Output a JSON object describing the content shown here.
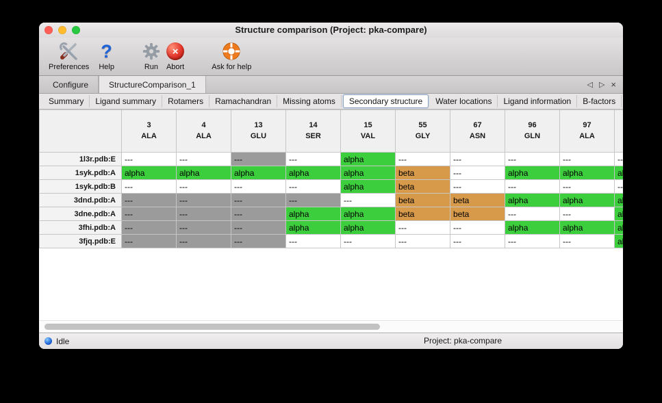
{
  "window": {
    "title": "Structure comparison (Project: pka-compare)"
  },
  "toolbar": {
    "items": [
      {
        "id": "preferences",
        "label": "Preferences",
        "icon": "tools"
      },
      {
        "id": "help",
        "label": "Help",
        "icon": "question"
      },
      {
        "id": "run",
        "label": "Run",
        "icon": "gear"
      },
      {
        "id": "abort",
        "label": "Abort",
        "icon": "abort"
      },
      {
        "id": "ask-for-help",
        "label": "Ask for help",
        "icon": "lifebuoy"
      }
    ]
  },
  "doc_tabs": {
    "tabs": [
      {
        "label": "Configure",
        "selected": false
      },
      {
        "label": "StructureComparison_1",
        "selected": true
      }
    ],
    "controls": {
      "prev": "◁",
      "next": "▷",
      "close": "×"
    }
  },
  "view_tabs": {
    "tabs": [
      {
        "label": "Summary",
        "selected": false
      },
      {
        "label": "Ligand summary",
        "selected": false
      },
      {
        "label": "Rotamers",
        "selected": false
      },
      {
        "label": "Ramachandran",
        "selected": false
      },
      {
        "label": "Missing atoms",
        "selected": false
      },
      {
        "label": "Secondary structure",
        "selected": true
      },
      {
        "label": "Water locations",
        "selected": false
      },
      {
        "label": "Ligand information",
        "selected": false
      },
      {
        "label": "B-factors",
        "selected": false
      }
    ],
    "controls": {
      "prev": "◁",
      "next": "▷"
    }
  },
  "table": {
    "columns": [
      {
        "number": "3",
        "residue": "ALA"
      },
      {
        "number": "4",
        "residue": "ALA"
      },
      {
        "number": "13",
        "residue": "GLU"
      },
      {
        "number": "14",
        "residue": "SER"
      },
      {
        "number": "15",
        "residue": "VAL"
      },
      {
        "number": "55",
        "residue": "GLY"
      },
      {
        "number": "67",
        "residue": "ASN"
      },
      {
        "number": "96",
        "residue": "GLN"
      },
      {
        "number": "97",
        "residue": "ALA"
      },
      {
        "number": "",
        "residue": ""
      }
    ],
    "rows": [
      {
        "name": "1l3r.pdb:E",
        "cells": [
          {
            "text": "---",
            "bg": "white"
          },
          {
            "text": "---",
            "bg": "white"
          },
          {
            "text": "---",
            "bg": "gray"
          },
          {
            "text": "---",
            "bg": "white"
          },
          {
            "text": "alpha",
            "bg": "green"
          },
          {
            "text": "---",
            "bg": "white"
          },
          {
            "text": "---",
            "bg": "white"
          },
          {
            "text": "---",
            "bg": "white"
          },
          {
            "text": "---",
            "bg": "white"
          },
          {
            "text": "---",
            "bg": "white"
          }
        ]
      },
      {
        "name": "1syk.pdb:A",
        "cells": [
          {
            "text": "alpha",
            "bg": "green"
          },
          {
            "text": "alpha",
            "bg": "green"
          },
          {
            "text": "alpha",
            "bg": "green"
          },
          {
            "text": "alpha",
            "bg": "green"
          },
          {
            "text": "alpha",
            "bg": "green"
          },
          {
            "text": "beta",
            "bg": "orange"
          },
          {
            "text": "---",
            "bg": "white"
          },
          {
            "text": "alpha",
            "bg": "green"
          },
          {
            "text": "alpha",
            "bg": "green"
          },
          {
            "text": "alpha",
            "bg": "green"
          }
        ]
      },
      {
        "name": "1syk.pdb:B",
        "cells": [
          {
            "text": "---",
            "bg": "white"
          },
          {
            "text": "---",
            "bg": "white"
          },
          {
            "text": "---",
            "bg": "white"
          },
          {
            "text": "---",
            "bg": "white"
          },
          {
            "text": "alpha",
            "bg": "green"
          },
          {
            "text": "beta",
            "bg": "orange"
          },
          {
            "text": "---",
            "bg": "white"
          },
          {
            "text": "---",
            "bg": "white"
          },
          {
            "text": "---",
            "bg": "white"
          },
          {
            "text": "---",
            "bg": "white"
          }
        ]
      },
      {
        "name": "3dnd.pdb:A",
        "cells": [
          {
            "text": "---",
            "bg": "gray"
          },
          {
            "text": "---",
            "bg": "gray"
          },
          {
            "text": "---",
            "bg": "gray"
          },
          {
            "text": "---",
            "bg": "gray"
          },
          {
            "text": "---",
            "bg": "white"
          },
          {
            "text": "beta",
            "bg": "orange"
          },
          {
            "text": "beta",
            "bg": "orange"
          },
          {
            "text": "alpha",
            "bg": "green"
          },
          {
            "text": "alpha",
            "bg": "green"
          },
          {
            "text": "alpha",
            "bg": "green"
          }
        ]
      },
      {
        "name": "3dne.pdb:A",
        "cells": [
          {
            "text": "---",
            "bg": "gray"
          },
          {
            "text": "---",
            "bg": "gray"
          },
          {
            "text": "---",
            "bg": "gray"
          },
          {
            "text": "alpha",
            "bg": "green"
          },
          {
            "text": "alpha",
            "bg": "green"
          },
          {
            "text": "beta",
            "bg": "orange"
          },
          {
            "text": "beta",
            "bg": "orange"
          },
          {
            "text": "---",
            "bg": "white"
          },
          {
            "text": "---",
            "bg": "white"
          },
          {
            "text": "alpha",
            "bg": "green"
          }
        ]
      },
      {
        "name": "3fhi.pdb:A",
        "cells": [
          {
            "text": "---",
            "bg": "gray"
          },
          {
            "text": "---",
            "bg": "gray"
          },
          {
            "text": "---",
            "bg": "gray"
          },
          {
            "text": "alpha",
            "bg": "green"
          },
          {
            "text": "alpha",
            "bg": "green"
          },
          {
            "text": "---",
            "bg": "white"
          },
          {
            "text": "---",
            "bg": "white"
          },
          {
            "text": "alpha",
            "bg": "green"
          },
          {
            "text": "alpha",
            "bg": "green"
          },
          {
            "text": "alpha",
            "bg": "green"
          }
        ]
      },
      {
        "name": "3fjq.pdb:E",
        "cells": [
          {
            "text": "---",
            "bg": "gray"
          },
          {
            "text": "---",
            "bg": "gray"
          },
          {
            "text": "---",
            "bg": "gray"
          },
          {
            "text": "---",
            "bg": "white"
          },
          {
            "text": "---",
            "bg": "white"
          },
          {
            "text": "---",
            "bg": "white"
          },
          {
            "text": "---",
            "bg": "white"
          },
          {
            "text": "---",
            "bg": "white"
          },
          {
            "text": "---",
            "bg": "white"
          },
          {
            "text": "alpha",
            "bg": "green"
          }
        ]
      }
    ]
  },
  "status_bar": {
    "status": "Idle",
    "project": "Project: pka-compare"
  },
  "colors": {
    "green": "#3dce3d",
    "orange": "#d79a4a",
    "gray": "#9b9b9b",
    "white": "#ffffff"
  }
}
